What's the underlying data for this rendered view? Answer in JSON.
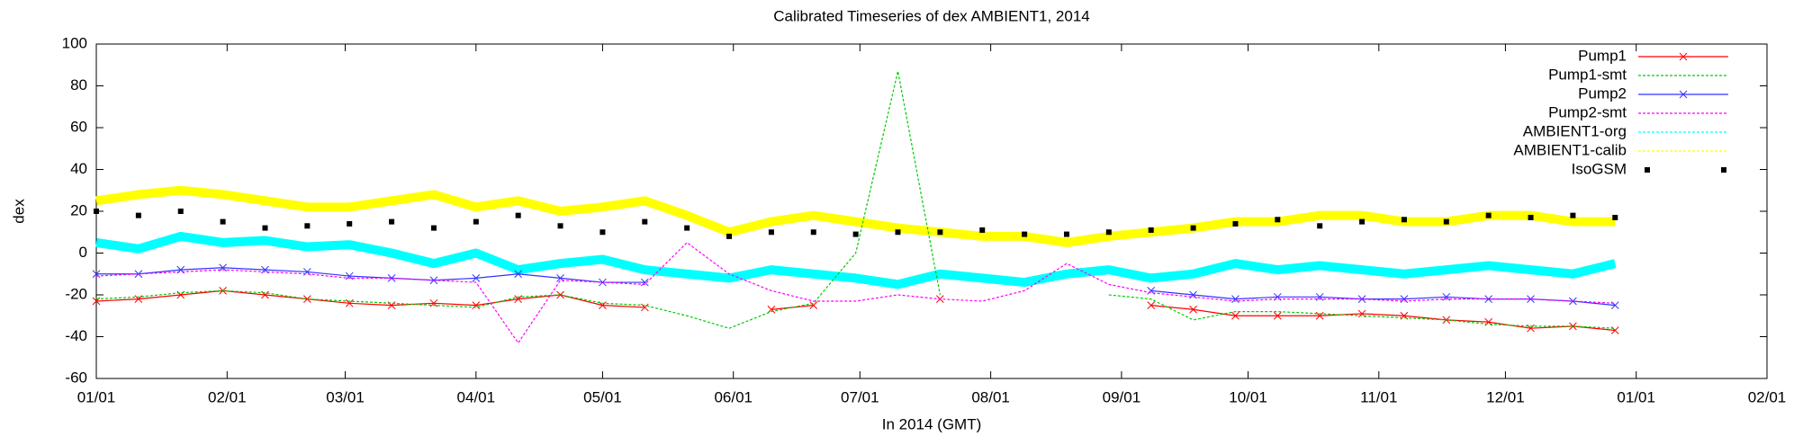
{
  "chart_data": {
    "type": "line",
    "title": "Calibrated Timeseries of dex AMBIENT1, 2014",
    "x_label": "In 2014 (GMT)",
    "y_label": "dex",
    "xlim": [
      0,
      396
    ],
    "ylim": [
      -60,
      100
    ],
    "xticks": [
      {
        "value": 0,
        "label": "01/01"
      },
      {
        "value": 31,
        "label": "02/01"
      },
      {
        "value": 59,
        "label": "03/01"
      },
      {
        "value": 90,
        "label": "04/01"
      },
      {
        "value": 120,
        "label": "05/01"
      },
      {
        "value": 151,
        "label": "06/01"
      },
      {
        "value": 181,
        "label": "07/01"
      },
      {
        "value": 212,
        "label": "08/01"
      },
      {
        "value": 243,
        "label": "09/01"
      },
      {
        "value": 273,
        "label": "10/01"
      },
      {
        "value": 304,
        "label": "11/01"
      },
      {
        "value": 334,
        "label": "12/01"
      },
      {
        "value": 365,
        "label": "01/01"
      },
      {
        "value": 396,
        "label": "02/01"
      }
    ],
    "yticks": [
      -60,
      -40,
      -20,
      0,
      20,
      40,
      60,
      80,
      100
    ],
    "legend": "top-right",
    "grid": false,
    "x": [
      0,
      10,
      20,
      30,
      40,
      50,
      60,
      70,
      80,
      90,
      100,
      110,
      120,
      130,
      140,
      150,
      160,
      170,
      180,
      190,
      200,
      210,
      220,
      230,
      240,
      250,
      260,
      270,
      280,
      290,
      300,
      310,
      320,
      330,
      340,
      350,
      360
    ],
    "series": [
      {
        "name": "Pump1",
        "color": "#ff0000",
        "marker": "x",
        "values": [
          -23,
          -22,
          -20,
          -18,
          -20,
          -22,
          -24,
          -25,
          -24,
          -25,
          -22,
          -20,
          -25,
          -26,
          null,
          null,
          -27,
          -25,
          null,
          null,
          -22,
          null,
          null,
          null,
          null,
          -25,
          -27,
          -30,
          -30,
          -30,
          -29,
          -30,
          -32,
          -33,
          -36,
          -35,
          -37
        ]
      },
      {
        "name": "Pump1-smt",
        "color": "#00cc00",
        "marker": "none",
        "values": [
          -22,
          -21,
          -19,
          -18,
          -19,
          -22,
          -23,
          -24,
          -25,
          -26,
          -21,
          -20,
          -24,
          -25,
          -30,
          -36,
          -28,
          -24,
          0,
          87,
          -20,
          null,
          null,
          null,
          -20,
          -22,
          -32,
          -28,
          -28,
          -29,
          -30,
          -31,
          -32,
          -34,
          -35,
          -35,
          -36
        ]
      },
      {
        "name": "Pump2",
        "color": "#3333ff",
        "marker": "x",
        "values": [
          -10,
          -10,
          -8,
          -7,
          -8,
          -9,
          -11,
          -12,
          -13,
          -12,
          -10,
          -12,
          -14,
          -14,
          null,
          null,
          null,
          null,
          null,
          null,
          null,
          null,
          null,
          null,
          null,
          -18,
          -20,
          -22,
          -21,
          -21,
          -22,
          -22,
          -21,
          -22,
          -22,
          -23,
          -25
        ]
      },
      {
        "name": "Pump2-smt",
        "color": "#ff00ff",
        "marker": "none",
        "values": [
          -11,
          -10,
          -9,
          -8,
          -9,
          -10,
          -12,
          -12,
          -13,
          -14,
          -43,
          -13,
          -14,
          -15,
          5,
          -10,
          -18,
          -23,
          -23,
          -20,
          -22,
          -23,
          -18,
          -5,
          -15,
          -19,
          -21,
          -23,
          -22,
          -22,
          -22,
          -23,
          -22,
          -22,
          -22,
          -23,
          -24
        ]
      },
      {
        "name": "AMBIENT1-org",
        "color": "#00ffff",
        "marker": "none",
        "values": [
          5,
          2,
          8,
          5,
          6,
          3,
          4,
          0,
          -5,
          0,
          -8,
          -5,
          -3,
          -8,
          -10,
          -12,
          -8,
          -10,
          -12,
          -15,
          -10,
          -12,
          -14,
          -10,
          -8,
          -12,
          -10,
          -5,
          -8,
          -6,
          -8,
          -10,
          -8,
          -6,
          -8,
          -10,
          -5
        ]
      },
      {
        "name": "AMBIENT1-calib",
        "color": "#ffff00",
        "marker": "none",
        "values": [
          25,
          28,
          30,
          28,
          25,
          22,
          22,
          25,
          28,
          22,
          25,
          20,
          22,
          25,
          18,
          10,
          15,
          18,
          15,
          12,
          10,
          8,
          8,
          5,
          8,
          10,
          12,
          15,
          15,
          18,
          18,
          15,
          15,
          18,
          18,
          15,
          15
        ]
      },
      {
        "name": "IsoGSM",
        "color": "#000000",
        "marker": "square",
        "values": [
          20,
          18,
          20,
          15,
          12,
          13,
          14,
          15,
          12,
          15,
          18,
          13,
          10,
          15,
          12,
          8,
          10,
          10,
          9,
          10,
          10,
          11,
          9,
          9,
          10,
          11,
          12,
          14,
          16,
          13,
          15,
          16,
          15,
          18,
          17,
          18,
          17
        ]
      }
    ]
  }
}
